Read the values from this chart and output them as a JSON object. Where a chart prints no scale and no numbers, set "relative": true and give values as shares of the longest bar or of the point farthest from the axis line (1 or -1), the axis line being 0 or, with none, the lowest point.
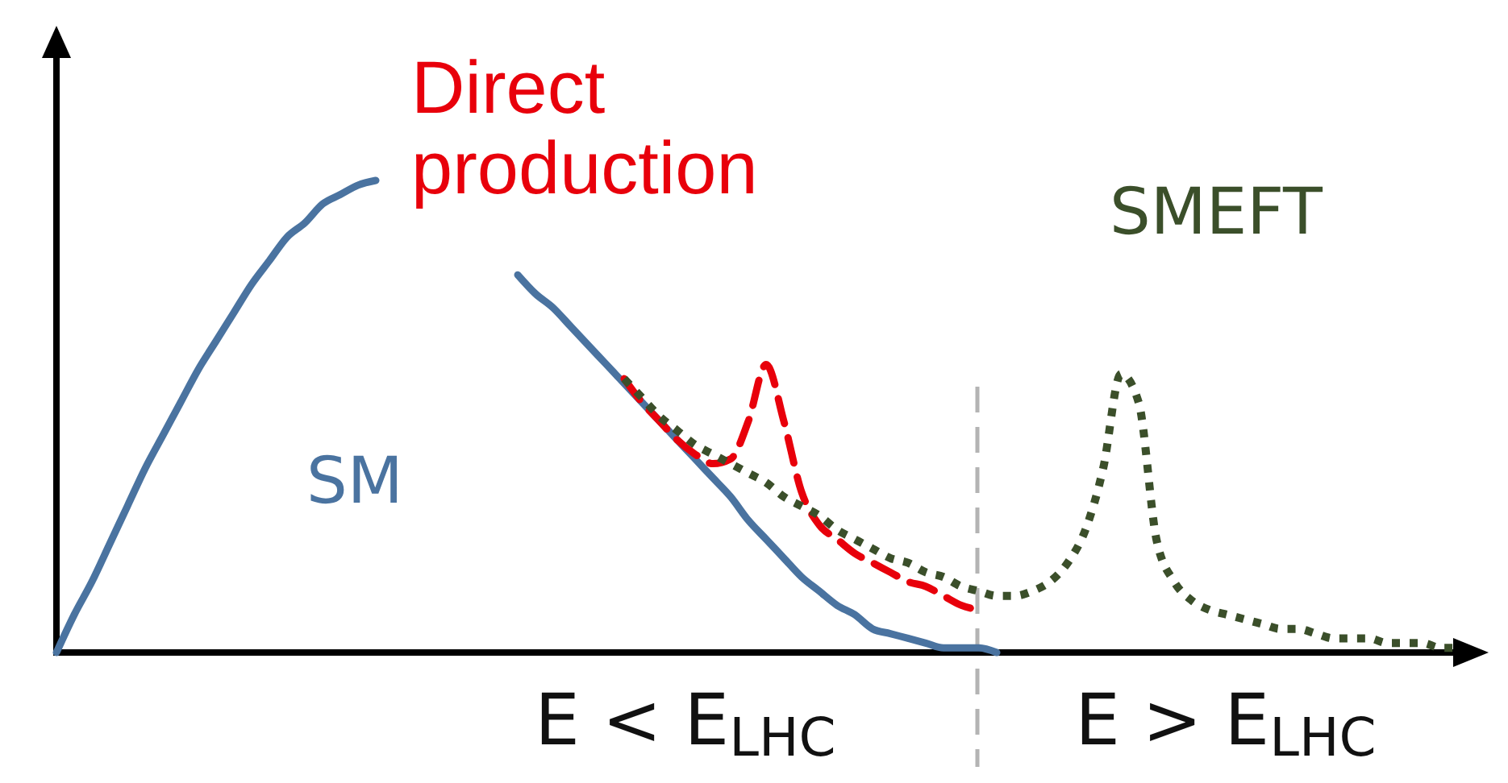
{
  "chart_data": {
    "type": "line",
    "relative": true,
    "categories": [
      null,
      null,
      null,
      null,
      null,
      null,
      null,
      null,
      null,
      null,
      null,
      null,
      null,
      null,
      null,
      null,
      null,
      null,
      null,
      null,
      null,
      null,
      null,
      null,
      null,
      null,
      null,
      null,
      null,
      null,
      null,
      null,
      null,
      null,
      null,
      null,
      null,
      null,
      null,
      null,
      null,
      null,
      null,
      null,
      null,
      null,
      null,
      null,
      null,
      null,
      null,
      null,
      null,
      null,
      null,
      null,
      null,
      null,
      null,
      null,
      null,
      null,
      null,
      null,
      null,
      null,
      null,
      null,
      null,
      null,
      null,
      null,
      null,
      null,
      null,
      null,
      null,
      null,
      null,
      null,
      null
    ],
    "series": [
      {
        "name": "SM",
        "color": "#4a73a0",
        "line_style": "solid",
        "values": [
          0,
          0.08,
          0.15,
          0.23,
          0.31,
          0.39,
          0.46,
          0.53,
          0.6,
          0.66,
          0.72,
          0.78,
          0.83,
          0.88,
          0.91,
          0.95,
          0.97,
          0.99,
          1,
          null,
          null,
          null,
          null,
          null,
          null,
          null,
          0.8,
          0.76,
          0.73,
          0.69,
          0.65,
          0.61,
          0.57,
          0.53,
          0.49,
          0.45,
          0.41,
          0.37,
          0.33,
          0.28,
          0.24,
          0.2,
          0.16,
          0.13,
          0.1,
          0.08,
          0.05,
          0.04,
          0.03,
          0.02,
          0.01,
          0.01,
          0.01,
          0,
          null,
          null,
          null,
          null,
          null,
          null,
          null,
          null,
          null,
          null,
          null,
          null,
          null,
          null,
          null,
          null,
          null,
          null,
          null,
          null,
          null,
          null,
          null,
          null,
          null,
          null,
          null
        ]
      },
      {
        "name": "Direct production",
        "color": "#e8000b",
        "line_style": "dashed",
        "values": [
          null,
          null,
          null,
          null,
          null,
          null,
          null,
          null,
          null,
          null,
          null,
          null,
          null,
          null,
          null,
          null,
          null,
          null,
          null,
          null,
          null,
          null,
          null,
          null,
          null,
          null,
          null,
          null,
          null,
          null,
          null,
          null,
          0.58,
          0.53,
          0.49,
          0.45,
          0.42,
          0.4,
          0.41,
          0.49,
          0.61,
          0.49,
          0.34,
          0.27,
          0.24,
          0.21,
          0.19,
          0.17,
          0.15,
          0.14,
          0.12,
          0.1,
          0.09,
          null,
          null,
          null,
          null,
          null,
          null,
          null,
          null,
          null,
          null,
          null,
          null,
          null,
          null,
          null,
          null,
          null,
          null,
          null,
          null,
          null,
          null,
          null,
          null,
          null,
          null,
          null,
          null
        ]
      },
      {
        "name": "SMEFT",
        "color": "#3b4f2a",
        "line_style": "dotted",
        "values": [
          null,
          null,
          null,
          null,
          null,
          null,
          null,
          null,
          null,
          null,
          null,
          null,
          null,
          null,
          null,
          null,
          null,
          null,
          null,
          null,
          null,
          null,
          null,
          null,
          null,
          null,
          null,
          null,
          null,
          null,
          null,
          null,
          0.58,
          0.54,
          0.5,
          0.47,
          0.44,
          0.42,
          0.4,
          0.38,
          0.36,
          0.33,
          0.31,
          0.29,
          0.26,
          0.24,
          0.22,
          0.2,
          0.19,
          0.17,
          0.16,
          0.14,
          0.13,
          0.12,
          0.12,
          0.13,
          0.15,
          0.19,
          0.26,
          0.39,
          0.59,
          0.53,
          0.24,
          0.15,
          0.11,
          0.09,
          0.08,
          0.07,
          0.06,
          0.05,
          0.05,
          0.04,
          0.03,
          0.03,
          0.03,
          0.02,
          0.02,
          0.02,
          0.01,
          0.01,
          null
        ]
      }
    ],
    "annotations": [
      "E < E$_{LHC}$",
      "E > E$_{LHC}$"
    ],
    "tick_labels": false
  }
}
